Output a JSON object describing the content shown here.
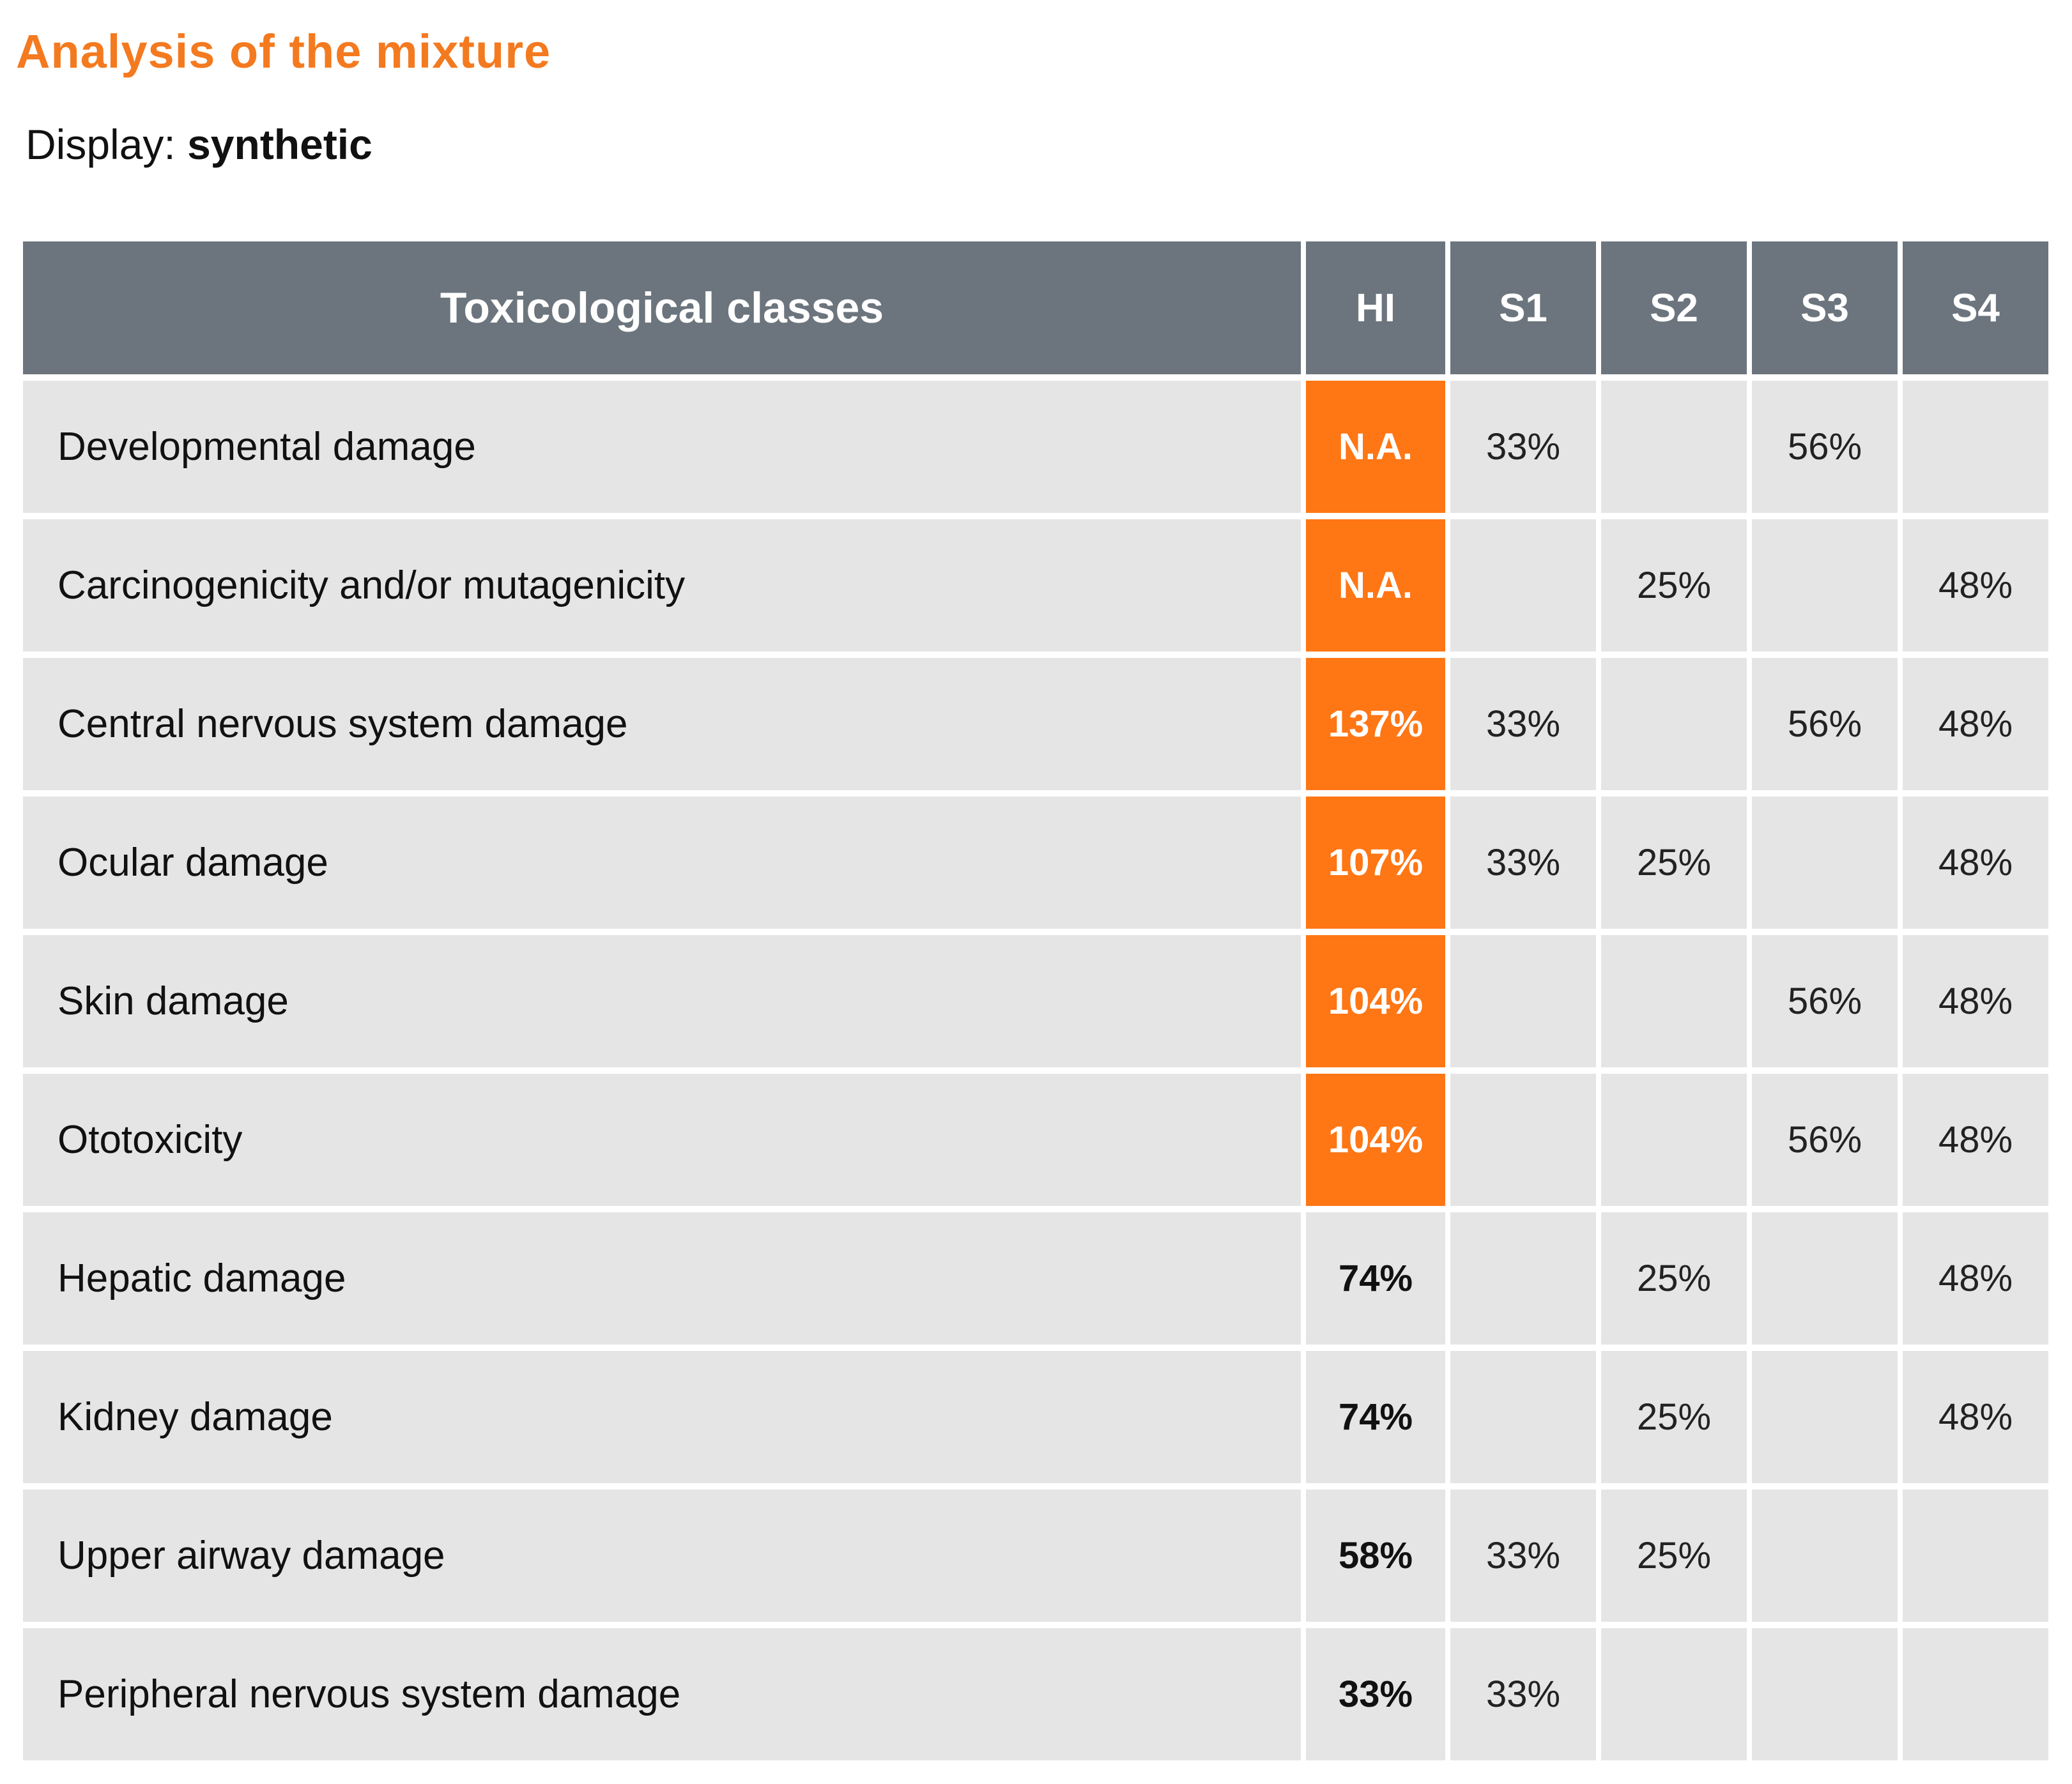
{
  "title": "Analysis of the mixture",
  "display": {
    "label": "Display:",
    "value": "synthetic"
  },
  "colors": {
    "title": "#f47a20",
    "header_bg": "#6c757e",
    "cell_bg": "#e5e5e5",
    "alert_bg": "#ff7615"
  },
  "table": {
    "headers": {
      "classes": "Toxicological classes",
      "hi": "HI",
      "s1": "S1",
      "s2": "S2",
      "s3": "S3",
      "s4": "S4"
    },
    "rows": [
      {
        "label": "Developmental damage",
        "hi": "N.A.",
        "hi_alert": true,
        "s1": "33%",
        "s2": "",
        "s3": "56%",
        "s4": ""
      },
      {
        "label": "Carcinogenicity and/or mutagenicity",
        "hi": "N.A.",
        "hi_alert": true,
        "s1": "",
        "s2": "25%",
        "s3": "",
        "s4": "48%"
      },
      {
        "label": "Central nervous system damage",
        "hi": "137%",
        "hi_alert": true,
        "s1": "33%",
        "s2": "",
        "s3": "56%",
        "s4": "48%"
      },
      {
        "label": "Ocular damage",
        "hi": "107%",
        "hi_alert": true,
        "s1": "33%",
        "s2": "25%",
        "s3": "",
        "s4": "48%"
      },
      {
        "label": "Skin damage",
        "hi": "104%",
        "hi_alert": true,
        "s1": "",
        "s2": "",
        "s3": "56%",
        "s4": "48%"
      },
      {
        "label": "Ototoxicity",
        "hi": "104%",
        "hi_alert": true,
        "s1": "",
        "s2": "",
        "s3": "56%",
        "s4": "48%"
      },
      {
        "label": "Hepatic damage",
        "hi": "74%",
        "hi_alert": false,
        "s1": "",
        "s2": "25%",
        "s3": "",
        "s4": "48%"
      },
      {
        "label": "Kidney damage",
        "hi": "74%",
        "hi_alert": false,
        "s1": "",
        "s2": "25%",
        "s3": "",
        "s4": "48%"
      },
      {
        "label": "Upper airway damage",
        "hi": "58%",
        "hi_alert": false,
        "s1": "33%",
        "s2": "25%",
        "s3": "",
        "s4": ""
      },
      {
        "label": "Peripheral nervous system damage",
        "hi": "33%",
        "hi_alert": false,
        "s1": "33%",
        "s2": "",
        "s3": "",
        "s4": ""
      }
    ]
  }
}
